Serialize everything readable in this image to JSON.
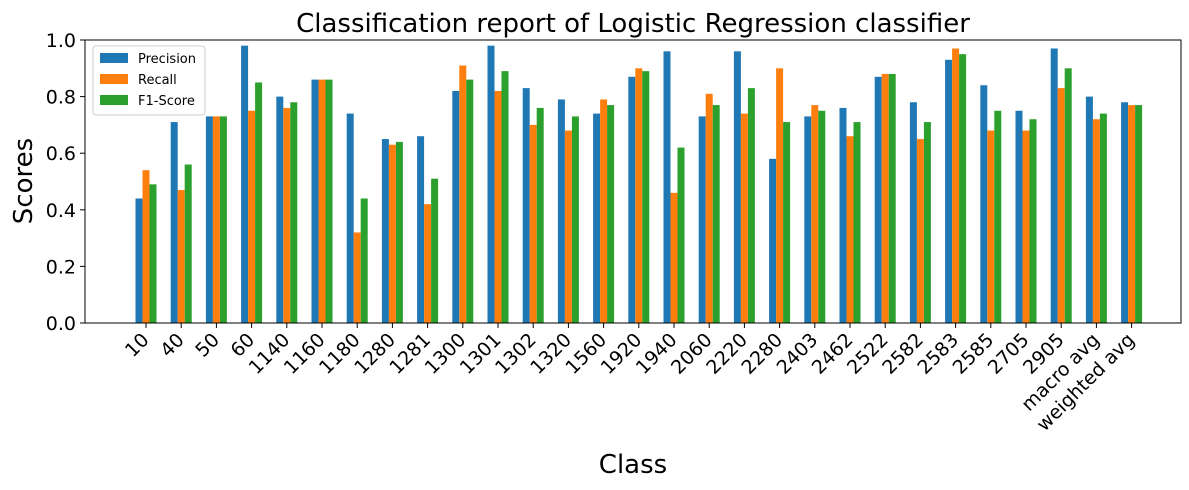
{
  "chart_data": {
    "type": "bar",
    "title": "Classification report of Logistic Regression classifier",
    "xlabel": "Class",
    "ylabel": "Scores",
    "ylim": [
      0,
      1
    ],
    "yticks": [
      "0.0",
      "0.2",
      "0.4",
      "0.6",
      "0.8",
      "1.0"
    ],
    "grid": false,
    "legend_position": "top-left",
    "categories": [
      "10",
      "40",
      "50",
      "60",
      "1140",
      "1160",
      "1180",
      "1280",
      "1281",
      "1300",
      "1301",
      "1302",
      "1320",
      "1560",
      "1920",
      "1940",
      "2060",
      "2220",
      "2280",
      "2403",
      "2462",
      "2522",
      "2582",
      "2583",
      "2585",
      "2705",
      "2905",
      "macro avg",
      "weighted avg"
    ],
    "series": [
      {
        "name": "Precision",
        "color": "#1f77b4",
        "values": [
          0.44,
          0.71,
          0.73,
          0.98,
          0.8,
          0.86,
          0.74,
          0.65,
          0.66,
          0.82,
          0.98,
          0.83,
          0.79,
          0.74,
          0.87,
          0.96,
          0.73,
          0.96,
          0.58,
          0.73,
          0.76,
          0.87,
          0.78,
          0.93,
          0.84,
          0.75,
          0.97,
          0.8,
          0.78
        ]
      },
      {
        "name": "Recall",
        "color": "#ff7f0e",
        "values": [
          0.54,
          0.47,
          0.73,
          0.75,
          0.76,
          0.86,
          0.32,
          0.63,
          0.42,
          0.91,
          0.82,
          0.7,
          0.68,
          0.79,
          0.9,
          0.46,
          0.81,
          0.74,
          0.9,
          0.77,
          0.66,
          0.88,
          0.65,
          0.97,
          0.68,
          0.68,
          0.83,
          0.72,
          0.77
        ]
      },
      {
        "name": "F1-Score",
        "color": "#2ca02c",
        "values": [
          0.49,
          0.56,
          0.73,
          0.85,
          0.78,
          0.86,
          0.44,
          0.64,
          0.51,
          0.86,
          0.89,
          0.76,
          0.73,
          0.77,
          0.89,
          0.62,
          0.77,
          0.83,
          0.71,
          0.75,
          0.71,
          0.88,
          0.71,
          0.95,
          0.75,
          0.72,
          0.9,
          0.74,
          0.77
        ]
      }
    ]
  }
}
